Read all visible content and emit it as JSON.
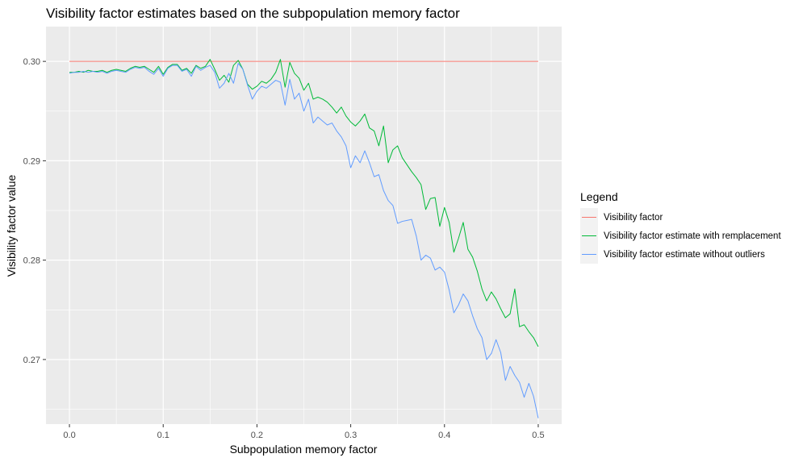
{
  "chart_data": {
    "type": "line",
    "title": "Visibility factor estimates based on the subpopulation memory factor",
    "xlabel": "Subpopulation memory factor",
    "ylabel": "Visibility factor value",
    "xlim": [
      -0.025,
      0.525
    ],
    "ylim": [
      0.2635,
      0.3035
    ],
    "x_ticks": [
      0.0,
      0.1,
      0.2,
      0.3,
      0.4,
      0.5
    ],
    "x_tick_labels": [
      "0.0",
      "0.1",
      "0.2",
      "0.3",
      "0.4",
      "0.5"
    ],
    "y_ticks": [
      0.27,
      0.28,
      0.29,
      0.3
    ],
    "y_tick_labels": [
      "0.27",
      "0.28",
      "0.29",
      "0.30"
    ],
    "grid": true,
    "legend": {
      "title": "Legend",
      "placement": "right"
    },
    "x": [
      0.0,
      0.005,
      0.01,
      0.015,
      0.02,
      0.025,
      0.03,
      0.035,
      0.04,
      0.045,
      0.05,
      0.055,
      0.06,
      0.065,
      0.07,
      0.075,
      0.08,
      0.085,
      0.09,
      0.095,
      0.1,
      0.105,
      0.11,
      0.115,
      0.12,
      0.125,
      0.13,
      0.135,
      0.14,
      0.145,
      0.15,
      0.155,
      0.16,
      0.165,
      0.17,
      0.175,
      0.18,
      0.185,
      0.19,
      0.195,
      0.2,
      0.205,
      0.21,
      0.215,
      0.22,
      0.225,
      0.23,
      0.235,
      0.24,
      0.245,
      0.25,
      0.255,
      0.26,
      0.265,
      0.27,
      0.275,
      0.28,
      0.285,
      0.29,
      0.295,
      0.3,
      0.305,
      0.31,
      0.315,
      0.32,
      0.325,
      0.33,
      0.335,
      0.34,
      0.345,
      0.35,
      0.355,
      0.36,
      0.365,
      0.37,
      0.375,
      0.38,
      0.385,
      0.39,
      0.395,
      0.4,
      0.405,
      0.41,
      0.415,
      0.42,
      0.425,
      0.43,
      0.435,
      0.44,
      0.445,
      0.45,
      0.455,
      0.46,
      0.465,
      0.47,
      0.475,
      0.48,
      0.485,
      0.49,
      0.495,
      0.5
    ],
    "series": [
      {
        "name": "Visibility factor",
        "color": "#f8766d",
        "values": [
          0.3,
          0.3,
          0.3,
          0.3,
          0.3,
          0.3,
          0.3,
          0.3,
          0.3,
          0.3,
          0.3,
          0.3,
          0.3,
          0.3,
          0.3,
          0.3,
          0.3,
          0.3,
          0.3,
          0.3,
          0.3,
          0.3,
          0.3,
          0.3,
          0.3,
          0.3,
          0.3,
          0.3,
          0.3,
          0.3,
          0.3,
          0.3,
          0.3,
          0.3,
          0.3,
          0.3,
          0.3,
          0.3,
          0.3,
          0.3,
          0.3,
          0.3,
          0.3,
          0.3,
          0.3,
          0.3,
          0.3,
          0.3,
          0.3,
          0.3,
          0.3,
          0.3,
          0.3,
          0.3,
          0.3,
          0.3,
          0.3,
          0.3,
          0.3,
          0.3,
          0.3,
          0.3,
          0.3,
          0.3,
          0.3,
          0.3,
          0.3,
          0.3,
          0.3,
          0.3,
          0.3,
          0.3,
          0.3,
          0.3,
          0.3,
          0.3,
          0.3,
          0.3,
          0.3,
          0.3,
          0.3,
          0.3,
          0.3,
          0.3,
          0.3,
          0.3,
          0.3,
          0.3,
          0.3,
          0.3,
          0.3,
          0.3,
          0.3,
          0.3,
          0.3,
          0.3,
          0.3,
          0.3,
          0.3,
          0.3,
          0.3
        ]
      },
      {
        "name": "Visibility factor estimate with remplacement",
        "color": "#00ba38",
        "values": [
          0.2989,
          0.2989,
          0.299,
          0.2989,
          0.2991,
          0.299,
          0.299,
          0.2991,
          0.2989,
          0.2991,
          0.2992,
          0.2991,
          0.299,
          0.2993,
          0.2995,
          0.2994,
          0.2995,
          0.2992,
          0.2989,
          0.2995,
          0.2987,
          0.2994,
          0.2997,
          0.2997,
          0.2991,
          0.2993,
          0.2988,
          0.2996,
          0.2993,
          0.2995,
          0.3002,
          0.2992,
          0.2981,
          0.2986,
          0.2979,
          0.2996,
          0.3001,
          0.2992,
          0.2977,
          0.2972,
          0.2975,
          0.298,
          0.2978,
          0.2982,
          0.2989,
          0.3002,
          0.2974,
          0.2999,
          0.2988,
          0.2983,
          0.2971,
          0.2978,
          0.2962,
          0.2964,
          0.2962,
          0.2959,
          0.2954,
          0.2948,
          0.2954,
          0.2945,
          0.2939,
          0.2935,
          0.294,
          0.2947,
          0.2933,
          0.293,
          0.2915,
          0.2935,
          0.2898,
          0.2911,
          0.2915,
          0.2903,
          0.2896,
          0.2889,
          0.2883,
          0.2876,
          0.2851,
          0.2862,
          0.2863,
          0.2834,
          0.2853,
          0.2838,
          0.2808,
          0.2822,
          0.2838,
          0.2811,
          0.2803,
          0.2789,
          0.2771,
          0.2759,
          0.2768,
          0.2761,
          0.2751,
          0.2742,
          0.2746,
          0.2771,
          0.2733,
          0.2735,
          0.2728,
          0.2722,
          0.2713
        ]
      },
      {
        "name": "Visibility factor estimate without outliers",
        "color": "#619cff",
        "values": [
          0.2988,
          0.2989,
          0.2989,
          0.299,
          0.2989,
          0.299,
          0.2989,
          0.299,
          0.2988,
          0.299,
          0.2991,
          0.299,
          0.2989,
          0.2992,
          0.2994,
          0.2993,
          0.2994,
          0.299,
          0.2987,
          0.2993,
          0.2985,
          0.2993,
          0.2996,
          0.2996,
          0.299,
          0.2992,
          0.2985,
          0.2995,
          0.2991,
          0.2994,
          0.2996,
          0.2989,
          0.2973,
          0.2978,
          0.2988,
          0.2978,
          0.2998,
          0.2992,
          0.2976,
          0.2962,
          0.297,
          0.2975,
          0.2973,
          0.2977,
          0.2981,
          0.2979,
          0.2956,
          0.2982,
          0.2962,
          0.2968,
          0.295,
          0.2962,
          0.2938,
          0.2944,
          0.294,
          0.2936,
          0.2938,
          0.293,
          0.2924,
          0.2915,
          0.2893,
          0.2905,
          0.2898,
          0.291,
          0.2898,
          0.2884,
          0.2886,
          0.287,
          0.286,
          0.2855,
          0.2837,
          0.2839,
          0.284,
          0.2841,
          0.2824,
          0.28,
          0.2805,
          0.2802,
          0.279,
          0.2793,
          0.2788,
          0.277,
          0.2747,
          0.2755,
          0.2766,
          0.2759,
          0.2744,
          0.2731,
          0.2722,
          0.27,
          0.2706,
          0.272,
          0.2707,
          0.2679,
          0.2693,
          0.2684,
          0.2677,
          0.2662,
          0.2676,
          0.2663,
          0.2641
        ]
      }
    ]
  }
}
